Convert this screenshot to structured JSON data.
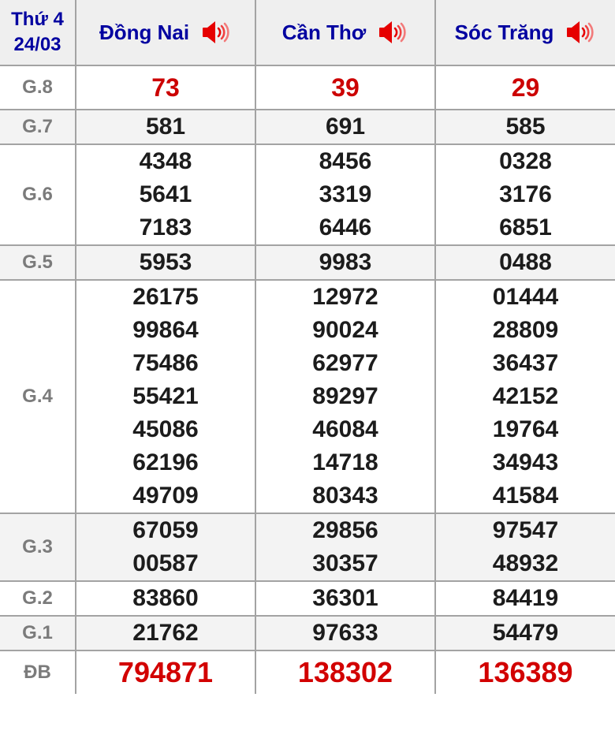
{
  "header": {
    "weekday": "Thứ 4",
    "date": "24/03",
    "columns": [
      {
        "name": "Đồng Nai",
        "icon": "speaker-icon"
      },
      {
        "name": "Cần Thơ",
        "icon": "speaker-icon"
      },
      {
        "name": "Sóc Trăng",
        "icon": "speaker-icon"
      }
    ]
  },
  "rows": [
    {
      "label": "G.8",
      "kind": "first",
      "values": [
        [
          "73"
        ],
        [
          "39"
        ],
        [
          "29"
        ]
      ]
    },
    {
      "label": "G.7",
      "kind": "normal",
      "values": [
        [
          "581"
        ],
        [
          "691"
        ],
        [
          "585"
        ]
      ]
    },
    {
      "label": "G.6",
      "kind": "normal",
      "values": [
        [
          "4348",
          "5641",
          "7183"
        ],
        [
          "8456",
          "3319",
          "6446"
        ],
        [
          "0328",
          "3176",
          "6851"
        ]
      ]
    },
    {
      "label": "G.5",
      "kind": "normal",
      "values": [
        [
          "5953"
        ],
        [
          "9983"
        ],
        [
          "0488"
        ]
      ]
    },
    {
      "label": "G.4",
      "kind": "normal",
      "values": [
        [
          "26175",
          "99864",
          "75486",
          "55421",
          "45086",
          "62196",
          "49709"
        ],
        [
          "12972",
          "90024",
          "62977",
          "89297",
          "46084",
          "14718",
          "80343"
        ],
        [
          "01444",
          "28809",
          "36437",
          "42152",
          "19764",
          "34943",
          "41584"
        ]
      ]
    },
    {
      "label": "G.3",
      "kind": "normal",
      "values": [
        [
          "67059",
          "00587"
        ],
        [
          "29856",
          "30357"
        ],
        [
          "97547",
          "48932"
        ]
      ]
    },
    {
      "label": "G.2",
      "kind": "normal",
      "values": [
        [
          "83860"
        ],
        [
          "36301"
        ],
        [
          "84419"
        ]
      ]
    },
    {
      "label": "G.1",
      "kind": "normal",
      "values": [
        [
          "21762"
        ],
        [
          "97633"
        ],
        [
          "54479"
        ]
      ]
    },
    {
      "label": "ĐB",
      "kind": "special",
      "values": [
        [
          "794871"
        ],
        [
          "138302"
        ],
        [
          "136389"
        ]
      ]
    }
  ],
  "colors": {
    "header_bg": "#efefef",
    "alt_row_bg": "#f3f3f3",
    "header_text": "#0000a0",
    "label_text": "#7b7b7b",
    "value_text": "#1c1c1c",
    "highlight_red": "#cc0000",
    "jackpot_red": "#d20000",
    "border": "#a3a3a3",
    "speaker_red": "#e60000"
  }
}
